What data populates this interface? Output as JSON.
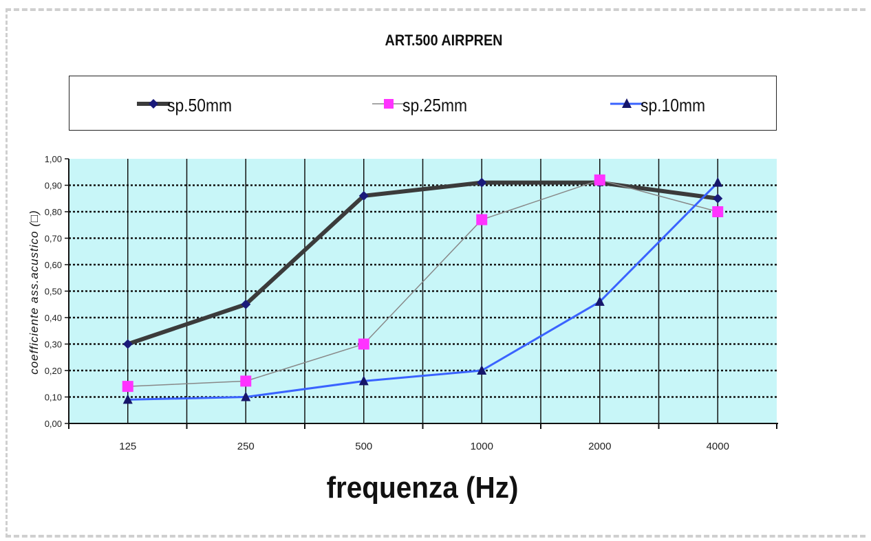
{
  "chart_data": {
    "type": "line",
    "title": "ART.500 AIRPREN",
    "xlabel": "frequenza (Hz)",
    "ylabel": "coefficiente ass.acustico (□)",
    "categories": [
      "125",
      "250",
      "500",
      "1000",
      "2000",
      "4000"
    ],
    "ylim": [
      0,
      1
    ],
    "yticks": [
      "0,00",
      "0,10",
      "0,20",
      "0,30",
      "0,40",
      "0,50",
      "0,60",
      "0,70",
      "0,80",
      "0,90",
      "1,00"
    ],
    "grid": true,
    "legend_position": "top",
    "plot_background": "#c8f6f8",
    "series": [
      {
        "name": "sp.50mm",
        "values": [
          0.3,
          0.45,
          0.86,
          0.91,
          0.91,
          0.85
        ],
        "color": "#3b3b3b",
        "marker_color": "#1a1a7a",
        "marker": "diamond"
      },
      {
        "name": "sp.25mm",
        "values": [
          0.14,
          0.16,
          0.3,
          0.77,
          0.92,
          0.8
        ],
        "color": "#888888",
        "marker_color": "#ff33ff",
        "marker": "square"
      },
      {
        "name": "sp.10mm",
        "values": [
          0.09,
          0.1,
          0.16,
          0.2,
          0.46,
          0.91
        ],
        "color": "#3a63ff",
        "marker_color": "#16166b",
        "marker": "triangle"
      }
    ]
  }
}
